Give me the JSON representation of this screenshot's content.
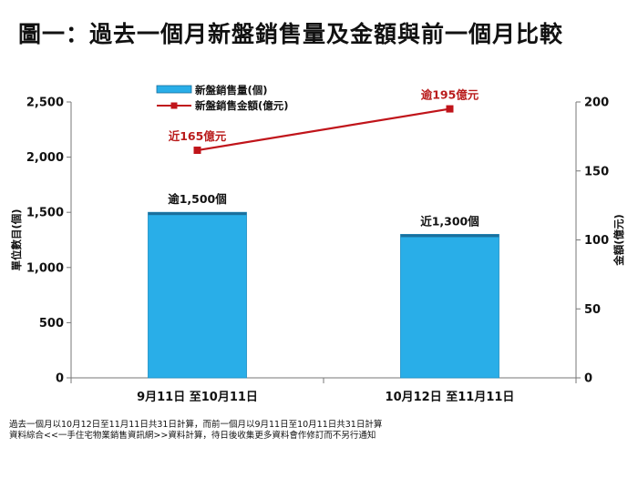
{
  "title": "圖一：過去一個月新盤銷售量及金額與前一個月比較",
  "notes": [
    "過去一個月以10月12日至11月11日共31日計算，而前一個月以9月11日至10月11日共31日計算",
    "資料綜合<<一手住宅物業銷售資訊網>>資料計算，待日後收集更多資料會作修訂而不另行通知"
  ],
  "colors": {
    "bar": "#29aee8",
    "line": "#c0141a",
    "label_red": "#b91c1c"
  },
  "chart_data": {
    "type": "bar",
    "categories": [
      "9月11日 至10月11日",
      "10月12日 至11月11日"
    ],
    "series": [
      {
        "name": "新盤銷售量(個)",
        "type": "bar",
        "axis": "left",
        "values": [
          1500,
          1300
        ],
        "labels": [
          "逾1,500個",
          "近1,300個"
        ]
      },
      {
        "name": "新盤銷售金額(億元)",
        "type": "line",
        "axis": "right",
        "values": [
          165,
          195
        ],
        "labels": [
          "近165億元",
          "逾195億元"
        ]
      }
    ],
    "ylabel": "單位數目(個)",
    "y2label": "金額(億元)",
    "ylim": [
      0,
      2500
    ],
    "y2lim": [
      0,
      200
    ],
    "yticks": [
      "0",
      "500",
      "1,000",
      "1,500",
      "2,000",
      "2,500"
    ],
    "y2ticks": [
      "0",
      "50",
      "100",
      "150",
      "200"
    ],
    "legend": "top-left",
    "grid": false
  }
}
